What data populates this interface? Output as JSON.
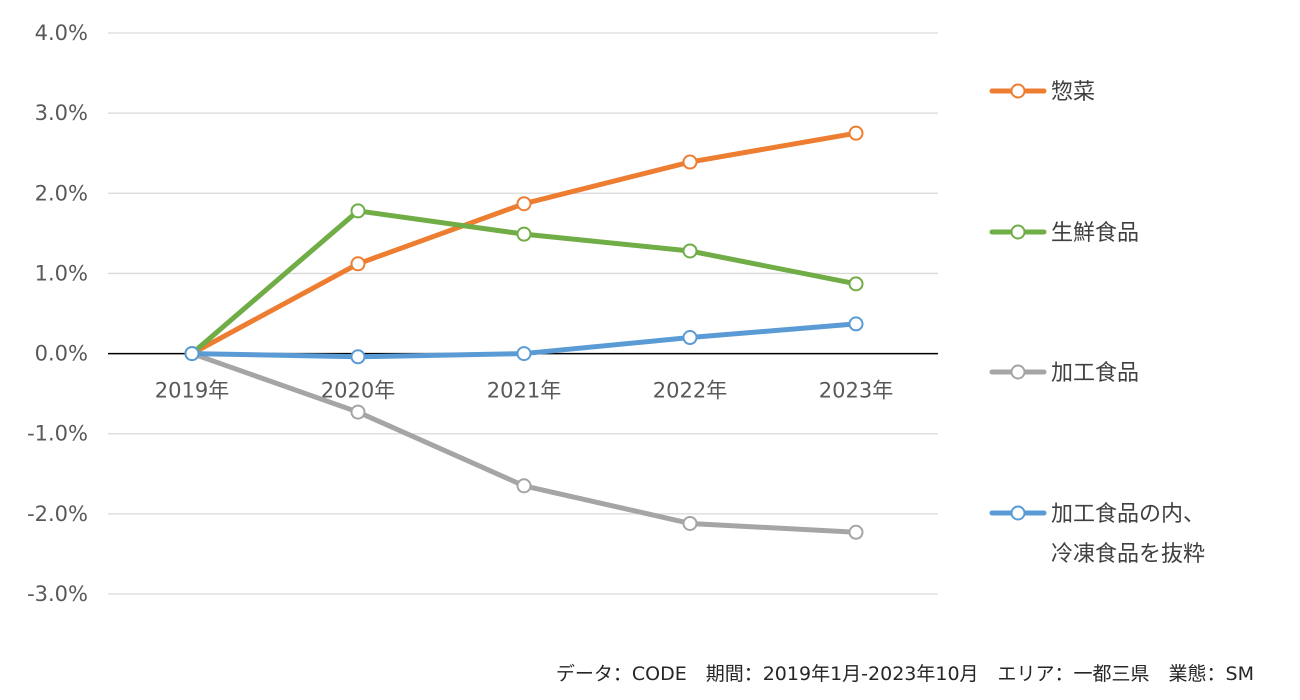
{
  "chart_data": {
    "type": "line",
    "title": "",
    "xlabel": "",
    "ylabel": "",
    "categories": [
      "2019年",
      "2020年",
      "2021年",
      "2022年",
      "2023年"
    ],
    "y_ticks": [
      "4.0%",
      "3.0%",
      "2.0%",
      "1.0%",
      "0.0%",
      "-1.0%",
      "-2.0%",
      "-3.0%"
    ],
    "y_tick_values": [
      4,
      3,
      2,
      1,
      0,
      -1,
      -2,
      -3
    ],
    "ylim": [
      -3,
      4
    ],
    "y_unit": "%",
    "grid": true,
    "legend_position": "right",
    "series": [
      {
        "name": "惣菜",
        "color": "#ed7d31",
        "values": [
          0.0,
          1.12,
          1.87,
          2.39,
          2.75
        ]
      },
      {
        "name": "生鮮食品",
        "color": "#70ad47",
        "values": [
          0.0,
          1.78,
          1.49,
          1.28,
          0.87
        ]
      },
      {
        "name": "加工食品",
        "color": "#a5a5a5",
        "values": [
          0.0,
          -0.73,
          -1.65,
          -2.12,
          -2.23
        ]
      },
      {
        "name": "加工食品の内、\n冷凍食品を抜粋",
        "name_lines": [
          "加工食品の内、",
          "冷凍食品を抜粋"
        ],
        "color": "#5b9bd5",
        "values": [
          0.0,
          -0.04,
          0.0,
          0.2,
          0.37
        ]
      }
    ]
  },
  "source_note": "データ：CODE　期間：2019年1月-2023年10月　エリア：一都三県　業態：SM"
}
